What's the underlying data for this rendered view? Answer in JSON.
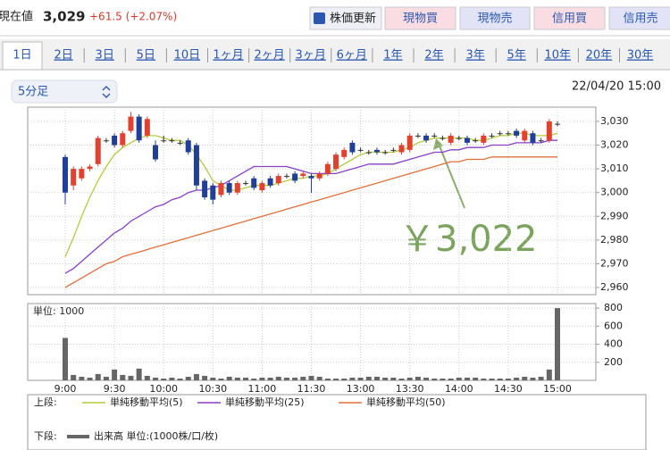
{
  "header": {
    "label": "現在値",
    "price": "3,029",
    "change": "+61.5 (+2.07%)",
    "buttons": [
      "株価更新",
      "現物買",
      "現物売",
      "信用買",
      "信用売"
    ]
  },
  "tabs": [
    "1日",
    "2日",
    "3日",
    "5日",
    "10日",
    "1ヶ月",
    "2ヶ月",
    "3ヶ月",
    "6ヶ月",
    "1年",
    "2年",
    "3年",
    "5年",
    "10年",
    "20年",
    "30年"
  ],
  "interval": "5分足",
  "datetime": "22/04/20 15:00",
  "legend": {
    "upper_label": "上段:",
    "lower_label": "下段:"
  },
  "chart_data": [
    {
      "type": "candlestick",
      "up_color": "#e2412f",
      "down_color": "#1f3f99",
      "open": [
        3015,
        3003,
        3006,
        3010,
        3012,
        3022,
        3024,
        3020,
        3026,
        3032,
        3024,
        3020,
        3022,
        3022,
        3021,
        3022,
        3020,
        3005,
        3003,
        2999,
        3004,
        3000,
        3004,
        3006,
        3001,
        3006,
        3004,
        3007,
        3008,
        3007,
        3007,
        3006,
        3008,
        3010,
        3015,
        3021,
        3018,
        3017,
        3018,
        3017,
        3018,
        3017,
        3018,
        3024,
        3024,
        3024,
        3023,
        3021,
        3023,
        3023,
        3022,
        3021,
        3024,
        3025,
        3025,
        3026,
        3022,
        3025,
        3022,
        3022,
        3029
      ],
      "high": [
        3016,
        3011,
        3011,
        3012,
        3024,
        3023,
        3025,
        3026,
        3034,
        3033,
        3032,
        3022,
        3024,
        3023,
        3022,
        3023,
        3021,
        3006,
        3004,
        3005,
        3005,
        3005,
        3005,
        3007,
        3005,
        3007,
        3008,
        3008,
        3009,
        3009,
        3008,
        3009,
        3013,
        3017,
        3019,
        3022,
        3019,
        3018,
        3019,
        3018,
        3019,
        3021,
        3025,
        3025,
        3025,
        3025,
        3024,
        3025,
        3024,
        3024,
        3023,
        3025,
        3025,
        3026,
        3026,
        3027,
        3027,
        3026,
        3023,
        3031,
        3030
      ],
      "low": [
        2995,
        3001,
        3005,
        3009,
        3011,
        3021,
        3019,
        3019,
        3025,
        3021,
        3023,
        3013,
        3021,
        3021,
        3020,
        3016,
        3001,
        2997,
        2995,
        2998,
        2999,
        2999,
        3003,
        3001,
        3000,
        3002,
        3003,
        3006,
        3004,
        3006,
        3000,
        3005,
        3007,
        3009,
        3014,
        3016,
        3017,
        3016,
        3016,
        3016,
        3017,
        3016,
        3017,
        3023,
        3021,
        3023,
        3022,
        3020,
        3022,
        3020,
        3021,
        3020,
        3023,
        3024,
        3024,
        3023,
        3021,
        3020,
        3021,
        3021,
        3028
      ],
      "close": [
        3000,
        3010,
        3010,
        3011,
        3023,
        3022,
        3020,
        3025,
        3032,
        3022,
        3031,
        3014,
        3022,
        3022,
        3021,
        3017,
        3003,
        2998,
        2997,
        3004,
        3000,
        3004,
        3004,
        3002,
        3004,
        3003,
        3007,
        3007,
        3005,
        3008,
        3006,
        3008,
        3012,
        3016,
        3018,
        3017,
        3018,
        3017,
        3017,
        3017,
        3018,
        3020,
        3024,
        3024,
        3022,
        3024,
        3023,
        3024,
        3023,
        3021,
        3022,
        3024,
        3024,
        3025,
        3025,
        3024,
        3026,
        3021,
        3022,
        3030,
        3029
      ],
      "series": [
        {
          "name": "単純移動平均(5)",
          "color": "#b3cc3c",
          "values": [
            2973,
            2981,
            2990,
            2998,
            3005,
            3011,
            3016,
            3019,
            3021,
            3023,
            3024,
            3024,
            3023,
            3022,
            3022,
            3020,
            3016,
            3011,
            3005,
            3003,
            3001,
            3001,
            3002,
            3003,
            3003,
            3003,
            3004,
            3005,
            3006,
            3006,
            3007,
            3007,
            3008,
            3010,
            3012,
            3014,
            3016,
            3017,
            3017,
            3017,
            3017,
            3018,
            3019,
            3021,
            3022,
            3023,
            3023,
            3023,
            3023,
            3023,
            3022,
            3022,
            3023,
            3024,
            3024,
            3025,
            3025,
            3024,
            3024,
            3024,
            3025
          ]
        },
        {
          "name": "単純移動平均(25)",
          "color": "#8a3fc8",
          "values": [
            2966,
            2968,
            2971,
            2974,
            2977,
            2980,
            2983,
            2985,
            2988,
            2990,
            2992,
            2994,
            2995,
            2997,
            2998,
            3000,
            3001,
            3001,
            3002,
            3003,
            3005,
            3007,
            3009,
            3011,
            3011,
            3011,
            3011,
            3011,
            3010,
            3009,
            3008,
            3008,
            3008,
            3008,
            3009,
            3010,
            3011,
            3012,
            3012,
            3012,
            3012,
            3013,
            3014,
            3015,
            3016,
            3017,
            3017,
            3018,
            3018,
            3019,
            3019,
            3019,
            3020,
            3020,
            3020,
            3021,
            3021,
            3021,
            3021,
            3022,
            3022
          ]
        },
        {
          "name": "単純移動平均(50)",
          "color": "#e0703a",
          "values": [
            2960,
            2962,
            2964,
            2966,
            2968,
            2970,
            2971,
            2973,
            2974,
            2975,
            2976,
            2977,
            2978,
            2979,
            2980,
            2981,
            2982,
            2983,
            2984,
            2985,
            2986,
            2987,
            2988,
            2989,
            2990,
            2991,
            2992,
            2993,
            2994,
            2995,
            2996,
            2997,
            2998,
            2999,
            3000,
            3001,
            3002,
            3003,
            3004,
            3005,
            3006,
            3007,
            3008,
            3009,
            3010,
            3011,
            3012,
            3013,
            3013,
            3014,
            3014,
            3014,
            3015,
            3015,
            3015,
            3015,
            3015,
            3015,
            3015,
            3015,
            3015
          ]
        }
      ],
      "annotation": "￥3,022",
      "ylim": [
        2957,
        3036
      ],
      "yticks": [
        {
          "value": 2960,
          "label": "2,960"
        },
        {
          "value": 2970,
          "label": "2,970"
        },
        {
          "value": 2980,
          "label": "2,980"
        },
        {
          "value": 2990,
          "label": "2,990"
        },
        {
          "value": 3000,
          "label": "3,000"
        },
        {
          "value": 3010,
          "label": "3,010"
        },
        {
          "value": 3020,
          "label": "3,020"
        },
        {
          "value": 3030,
          "label": "3,030"
        }
      ],
      "grid": true
    },
    {
      "type": "bar",
      "unit_label": "単位: 1000",
      "categories": [
        "9:00",
        null,
        null,
        null,
        null,
        null,
        "9:30",
        null,
        null,
        null,
        null,
        null,
        "10:00",
        null,
        null,
        null,
        null,
        null,
        "10:30",
        null,
        null,
        null,
        null,
        null,
        "11:00",
        null,
        null,
        null,
        null,
        null,
        "11:30",
        null,
        null,
        null,
        null,
        null,
        "13:00",
        null,
        null,
        null,
        null,
        null,
        "13:30",
        null,
        null,
        null,
        null,
        null,
        "14:00",
        null,
        null,
        null,
        null,
        null,
        "14:30",
        null,
        null,
        null,
        null,
        null,
        "15:00"
      ],
      "series": [
        {
          "name": "出来高 単位:(1000株/口/枚)",
          "color": "#666666",
          "values": [
            470,
            60,
            40,
            30,
            70,
            40,
            120,
            60,
            50,
            130,
            50,
            30,
            20,
            30,
            20,
            40,
            70,
            50,
            30,
            20,
            40,
            30,
            30,
            20,
            30,
            30,
            40,
            30,
            30,
            40,
            50,
            40,
            20,
            20,
            20,
            30,
            30,
            40,
            40,
            30,
            30,
            20,
            30,
            40,
            30,
            20,
            20,
            20,
            30,
            30,
            30,
            20,
            20,
            20,
            20,
            30,
            40,
            30,
            40,
            120,
            800
          ]
        }
      ],
      "ylim": [
        0,
        850
      ],
      "yticks": [
        200,
        400,
        600,
        800
      ],
      "grid": true
    }
  ]
}
